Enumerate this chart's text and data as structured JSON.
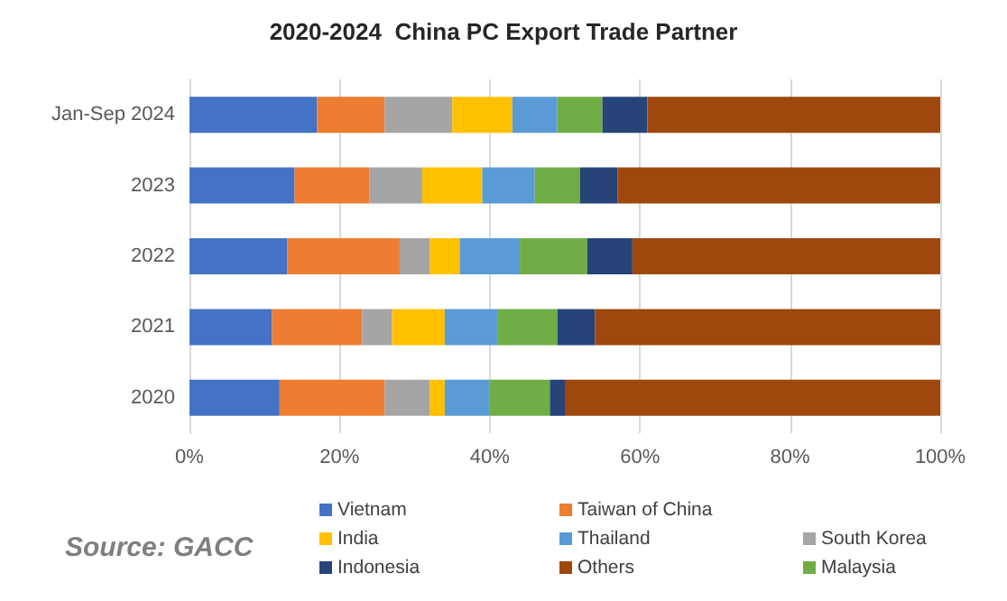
{
  "chart_data": {
    "type": "bar",
    "orientation": "horizontal",
    "stacked": true,
    "title": "2020-2024  China PC Export Trade Partner",
    "categories": [
      "Jan-Sep 2024",
      "2023",
      "2022",
      "2021",
      "2020"
    ],
    "series": [
      {
        "name": "Vietnam",
        "color": "#4472c4",
        "values": [
          17,
          14,
          13,
          11,
          12
        ]
      },
      {
        "name": "Taiwan of China",
        "color": "#ed7d31",
        "values": [
          9,
          10,
          15,
          12,
          14
        ]
      },
      {
        "name": "South Korea",
        "color": "#a5a5a5",
        "values": [
          9,
          7,
          4,
          4,
          6
        ]
      },
      {
        "name": "India",
        "color": "#ffc000",
        "values": [
          8,
          8,
          4,
          7,
          2
        ]
      },
      {
        "name": "Thailand",
        "color": "#5b9bd5",
        "values": [
          6,
          7,
          8,
          7,
          6
        ]
      },
      {
        "name": "Malaysia",
        "color": "#70ad47",
        "values": [
          6,
          6,
          9,
          8,
          8
        ]
      },
      {
        "name": "Indonesia",
        "color": "#264478",
        "values": [
          6,
          5,
          6,
          5,
          2
        ]
      },
      {
        "name": "Others",
        "color": "#9e480e",
        "values": [
          39,
          43,
          41,
          46,
          50
        ]
      }
    ],
    "xlim": [
      0,
      100
    ],
    "xticks": [
      {
        "value": 0,
        "label": "0%"
      },
      {
        "value": 20,
        "label": "20%"
      },
      {
        "value": 40,
        "label": "40%"
      },
      {
        "value": 60,
        "label": "60%"
      },
      {
        "value": 80,
        "label": "80%"
      },
      {
        "value": 100,
        "label": "100%"
      }
    ],
    "grid": "x",
    "legend": "bottom",
    "annotations": [
      "Source: GACC"
    ]
  }
}
